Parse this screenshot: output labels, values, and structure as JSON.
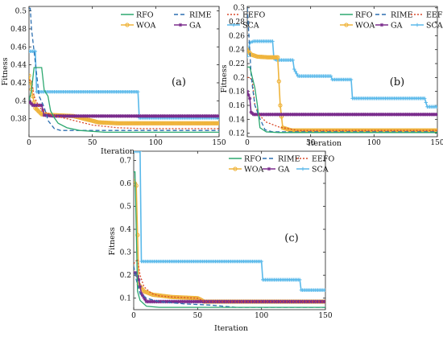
{
  "chart_data": [
    {
      "type": "line",
      "panel_label": "(a)",
      "xlabel": "Iteration",
      "ylabel": "Fitness",
      "xlim": [
        0,
        150
      ],
      "ylim": [
        0.36,
        0.505
      ],
      "xticks": [
        0,
        50,
        100,
        150
      ],
      "yticks": [
        0.38,
        0.4,
        0.42,
        0.44,
        0.46,
        0.48,
        0.5
      ],
      "ytick_labels": [
        "0.38",
        "0.4",
        "0.42",
        "0.44",
        "0.46",
        "0.48",
        "0.5"
      ],
      "legend_position": "top-right",
      "series": [
        {
          "name": "RFO",
          "points": [
            [
              0,
              0.4
            ],
            [
              2,
              0.412
            ],
            [
              4,
              0.437
            ],
            [
              10,
              0.437
            ],
            [
              12,
              0.412
            ],
            [
              15,
              0.405
            ],
            [
              17,
              0.389
            ],
            [
              20,
              0.381
            ],
            [
              23,
              0.375
            ],
            [
              30,
              0.37
            ],
            [
              40,
              0.367
            ],
            [
              60,
              0.365
            ],
            [
              150,
              0.365
            ]
          ]
        },
        {
          "name": "RIME",
          "points": [
            [
              0,
              0.503
            ],
            [
              1,
              0.503
            ],
            [
              2,
              0.48
            ],
            [
              4,
              0.455
            ],
            [
              6,
              0.43
            ],
            [
              8,
              0.405
            ],
            [
              12,
              0.393
            ],
            [
              15,
              0.378
            ],
            [
              20,
              0.369
            ],
            [
              25,
              0.367
            ],
            [
              150,
              0.367
            ]
          ]
        },
        {
          "name": "EEFO",
          "points": [
            [
              0,
              0.423
            ],
            [
              2,
              0.423
            ],
            [
              4,
              0.405
            ],
            [
              8,
              0.393
            ],
            [
              12,
              0.388
            ],
            [
              18,
              0.384
            ],
            [
              30,
              0.38
            ],
            [
              50,
              0.373
            ],
            [
              70,
              0.37
            ],
            [
              90,
              0.369
            ],
            [
              150,
              0.369
            ]
          ]
        },
        {
          "name": "WOA",
          "points": [
            [
              0,
              0.428
            ],
            [
              3,
              0.405
            ],
            [
              5,
              0.392
            ],
            [
              10,
              0.385
            ],
            [
              20,
              0.384
            ],
            [
              35,
              0.383
            ],
            [
              55,
              0.376
            ],
            [
              70,
              0.375
            ],
            [
              100,
              0.375
            ],
            [
              150,
              0.375
            ]
          ]
        },
        {
          "name": "GA",
          "points": [
            [
              0,
              0.401
            ],
            [
              1,
              0.398
            ],
            [
              3,
              0.395
            ],
            [
              10,
              0.395
            ],
            [
              12,
              0.384
            ],
            [
              20,
              0.383
            ],
            [
              150,
              0.383
            ]
          ]
        },
        {
          "name": "SCA",
          "points": [
            [
              0,
              0.455
            ],
            [
              5,
              0.455
            ],
            [
              6,
              0.41
            ],
            [
              86,
              0.41
            ],
            [
              87,
              0.381
            ],
            [
              150,
              0.381
            ]
          ]
        }
      ]
    },
    {
      "type": "line",
      "panel_label": "(b)",
      "xlabel": "Iteration",
      "ylabel": "Fitness",
      "xlim": [
        0,
        150
      ],
      "ylim": [
        0.115,
        0.302
      ],
      "xticks": [
        0,
        50,
        100,
        150
      ],
      "yticks": [
        0.12,
        0.14,
        0.16,
        0.18,
        0.2,
        0.22,
        0.24,
        0.26,
        0.28,
        0.3
      ],
      "ytick_labels": [
        "0.12",
        "0.14",
        "0.16",
        "0.18",
        "0.2",
        "0.22",
        "0.24",
        "0.26",
        "0.28",
        "0.3"
      ],
      "legend_position": "top-right",
      "series": [
        {
          "name": "RFO",
          "points": [
            [
              0,
              0.215
            ],
            [
              2,
              0.215
            ],
            [
              4,
              0.2
            ],
            [
              6,
              0.185
            ],
            [
              8,
              0.16
            ],
            [
              10,
              0.128
            ],
            [
              15,
              0.122
            ],
            [
              25,
              0.121
            ],
            [
              150,
              0.121
            ]
          ]
        },
        {
          "name": "RIME",
          "points": [
            [
              0,
              0.3
            ],
            [
              1,
              0.27
            ],
            [
              2,
              0.238
            ],
            [
              3,
              0.205
            ],
            [
              4,
              0.188
            ],
            [
              6,
              0.16
            ],
            [
              10,
              0.141
            ],
            [
              14,
              0.125
            ],
            [
              20,
              0.122
            ],
            [
              150,
              0.122
            ]
          ]
        },
        {
          "name": "EEFO",
          "points": [
            [
              0,
              0.2
            ],
            [
              2,
              0.2
            ],
            [
              4,
              0.195
            ],
            [
              6,
              0.16
            ],
            [
              10,
              0.145
            ],
            [
              15,
              0.136
            ],
            [
              25,
              0.129
            ],
            [
              40,
              0.124
            ],
            [
              150,
              0.124
            ]
          ]
        },
        {
          "name": "WOA",
          "points": [
            [
              0,
              0.24
            ],
            [
              3,
              0.233
            ],
            [
              8,
              0.23
            ],
            [
              16,
              0.229
            ],
            [
              24,
              0.229
            ],
            [
              26,
              0.16
            ],
            [
              28,
              0.128
            ],
            [
              35,
              0.124
            ],
            [
              150,
              0.124
            ]
          ]
        },
        {
          "name": "GA",
          "points": [
            [
              0,
              0.18
            ],
            [
              1,
              0.175
            ],
            [
              2,
              0.17
            ],
            [
              3,
              0.15
            ],
            [
              5,
              0.147
            ],
            [
              150,
              0.147
            ]
          ]
        },
        {
          "name": "SCA",
          "points": [
            [
              0,
              0.23
            ],
            [
              2,
              0.25
            ],
            [
              5,
              0.252
            ],
            [
              20,
              0.252
            ],
            [
              21,
              0.227
            ],
            [
              23,
              0.225
            ],
            [
              36,
              0.225
            ],
            [
              37,
              0.212
            ],
            [
              40,
              0.202
            ],
            [
              66,
              0.202
            ],
            [
              67,
              0.197
            ],
            [
              82,
              0.197
            ],
            [
              83,
              0.17
            ],
            [
              140,
              0.17
            ],
            [
              142,
              0.158
            ],
            [
              150,
              0.158
            ]
          ]
        }
      ]
    },
    {
      "type": "line",
      "panel_label": "(c)",
      "xlabel": "Iteration",
      "ylabel": "Fitness",
      "xlim": [
        0,
        150
      ],
      "ylim": [
        0.05,
        0.74
      ],
      "xticks": [
        0,
        50,
        100,
        150
      ],
      "yticks": [
        0.1,
        0.2,
        0.3,
        0.4,
        0.5,
        0.6,
        0.7
      ],
      "ytick_labels": [
        "0.1",
        "0.2",
        "0.3",
        "0.4",
        "0.5",
        "0.6",
        "0.7"
      ],
      "legend_position": "top",
      "series": [
        {
          "name": "RFO",
          "points": [
            [
              0,
              0.65
            ],
            [
              1,
              0.65
            ],
            [
              2,
              0.4
            ],
            [
              3,
              0.13
            ],
            [
              5,
              0.09
            ],
            [
              10,
              0.065
            ],
            [
              20,
              0.06
            ],
            [
              150,
              0.06
            ]
          ]
        },
        {
          "name": "RIME",
          "points": [
            [
              0,
              0.24
            ],
            [
              2,
              0.18
            ],
            [
              5,
              0.12
            ],
            [
              10,
              0.1
            ],
            [
              20,
              0.085
            ],
            [
              40,
              0.075
            ],
            [
              60,
              0.07
            ],
            [
              80,
              0.06
            ],
            [
              150,
              0.06
            ]
          ]
        },
        {
          "name": "EEFO",
          "points": [
            [
              0,
              0.25
            ],
            [
              3,
              0.27
            ],
            [
              5,
              0.2
            ],
            [
              8,
              0.15
            ],
            [
              14,
              0.12
            ],
            [
              20,
              0.11
            ],
            [
              30,
              0.105
            ],
            [
              50,
              0.1
            ],
            [
              55,
              0.085
            ],
            [
              150,
              0.085
            ]
          ]
        },
        {
          "name": "WOA",
          "points": [
            [
              0,
              0.61
            ],
            [
              2,
              0.59
            ],
            [
              4,
              0.16
            ],
            [
              8,
              0.13
            ],
            [
              15,
              0.115
            ],
            [
              30,
              0.105
            ],
            [
              50,
              0.1
            ],
            [
              52,
              0.095
            ],
            [
              55,
              0.085
            ],
            [
              150,
              0.085
            ]
          ]
        },
        {
          "name": "GA",
          "points": [
            [
              0,
              0.21
            ],
            [
              2,
              0.21
            ],
            [
              4,
              0.18
            ],
            [
              6,
              0.12
            ],
            [
              10,
              0.085
            ],
            [
              150,
              0.085
            ]
          ]
        },
        {
          "name": "SCA",
          "points": [
            [
              0,
              0.74
            ],
            [
              5,
              0.74
            ],
            [
              6,
              0.26
            ],
            [
              100,
              0.26
            ],
            [
              101,
              0.18
            ],
            [
              130,
              0.18
            ],
            [
              131,
              0.135
            ],
            [
              150,
              0.135
            ]
          ]
        }
      ]
    }
  ],
  "series_colors": {
    "RFO": "#2ca86f",
    "RIME": "#2c6fb0",
    "EEFO": "#d94a2b",
    "WOA": "#efb43c",
    "GA": "#7a2c8c",
    "SCA": "#5ab9ea"
  },
  "series_styles": {
    "RFO": "solid",
    "RIME": "dashed",
    "EEFO": "dotted",
    "WOA": "solid-circle-markers",
    "GA": "solid-star-markers",
    "SCA": "solid-plus-markers"
  }
}
